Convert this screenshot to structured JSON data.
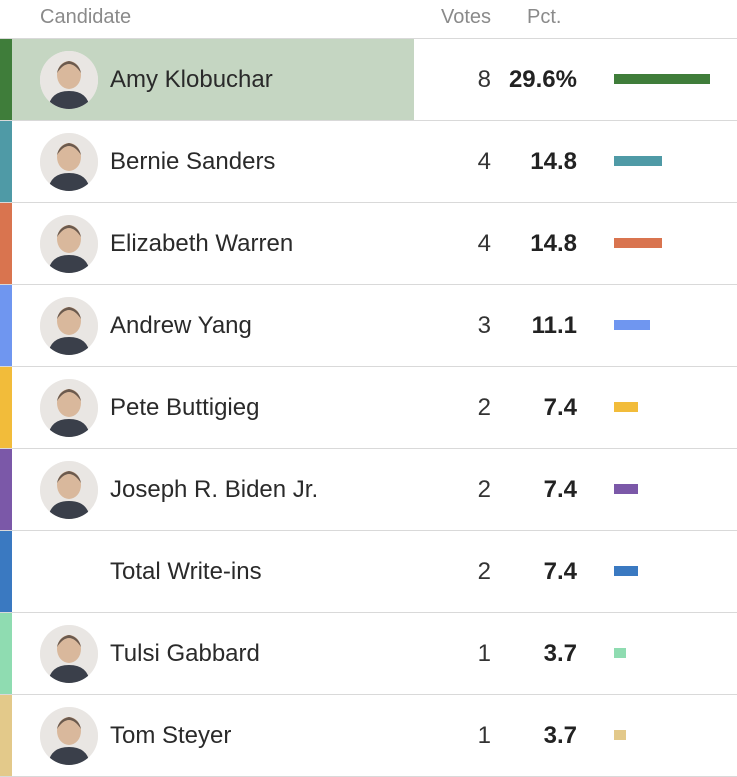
{
  "header": {
    "candidate": "Candidate",
    "votes": "Votes",
    "pct": "Pct."
  },
  "rows": [
    {
      "name": "Amy Klobuchar",
      "votes": "8",
      "pct": "29.6%",
      "share": 29.6,
      "color": "#3f7d3a",
      "avatar": "portrait-avatar"
    },
    {
      "name": "Bernie Sanders",
      "votes": "4",
      "pct": "14.8",
      "share": 14.8,
      "color": "#4f9aa6",
      "avatar": "portrait-avatar"
    },
    {
      "name": "Elizabeth Warren",
      "votes": "4",
      "pct": "14.8",
      "share": 14.8,
      "color": "#d9744f",
      "avatar": "portrait-avatar"
    },
    {
      "name": "Andrew Yang",
      "votes": "3",
      "pct": "11.1",
      "share": 11.1,
      "color": "#6f96f0",
      "avatar": "portrait-avatar"
    },
    {
      "name": "Pete Buttigieg",
      "votes": "2",
      "pct": "7.4",
      "share": 7.4,
      "color": "#f2bc3a",
      "avatar": "portrait-avatar"
    },
    {
      "name": "Joseph R. Biden Jr.",
      "votes": "2",
      "pct": "7.4",
      "share": 7.4,
      "color": "#7b58a8",
      "avatar": "portrait-avatar"
    },
    {
      "name": "Total Write-ins",
      "votes": "2",
      "pct": "7.4",
      "share": 7.4,
      "color": "#3a79c1",
      "avatar": ""
    },
    {
      "name": "Tulsi Gabbard",
      "votes": "1",
      "pct": "3.7",
      "share": 3.7,
      "color": "#8fdcb1",
      "avatar": "portrait-avatar"
    },
    {
      "name": "Tom Steyer",
      "votes": "1",
      "pct": "3.7",
      "share": 3.7,
      "color": "#e3c98a",
      "avatar": "portrait-avatar"
    }
  ]
}
